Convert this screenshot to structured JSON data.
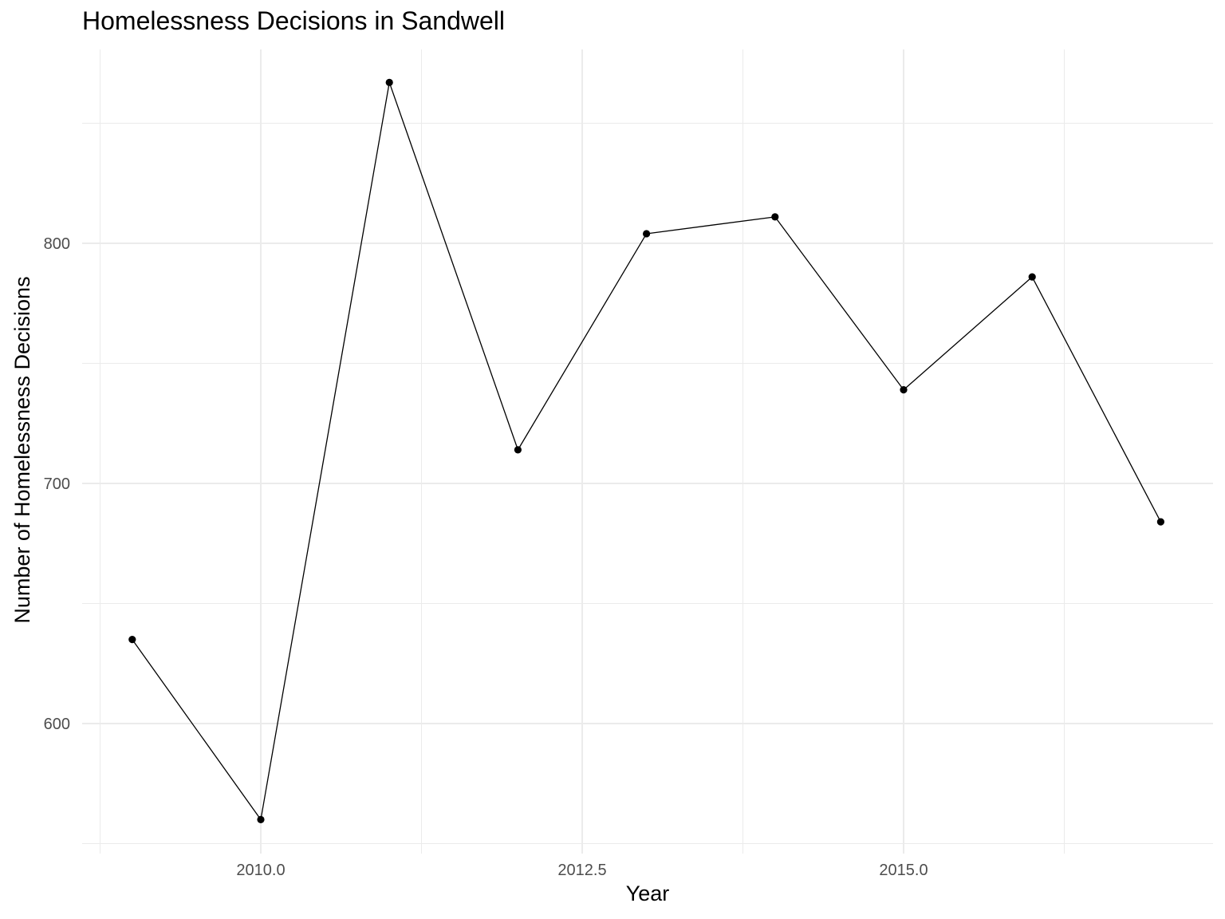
{
  "chart_data": {
    "type": "line",
    "title": "Homelessness Decisions in Sandwell",
    "xlabel": "Year",
    "ylabel": "Number of Homelessness Decisions",
    "x": [
      2009,
      2010,
      2011,
      2012,
      2013,
      2014,
      2015,
      2016,
      2017
    ],
    "series": [
      {
        "values": [
          635,
          560,
          867,
          714,
          804,
          811,
          739,
          786,
          684
        ]
      }
    ],
    "xlim": [
      2008.74,
      2017.41
    ],
    "ylim": [
      550,
      880
    ],
    "x_ticks": [
      2010.0,
      2012.5,
      2015.0
    ],
    "x_tick_labels": [
      "2010.0",
      "2012.5",
      "2015.0"
    ],
    "x_minor_ticks": [
      2008.75,
      2011.25,
      2013.75,
      2016.25
    ],
    "y_ticks": [
      600,
      700,
      800
    ],
    "y_tick_labels": [
      "600",
      "700",
      "800"
    ],
    "y_minor_ticks": [
      550,
      650,
      750,
      850
    ],
    "grid": true,
    "legend": "none",
    "colors": {
      "line": "#000000",
      "point": "#000000",
      "grid": "#ebebeb",
      "tick_label": "#4d4d4d",
      "background": "#ffffff"
    }
  }
}
